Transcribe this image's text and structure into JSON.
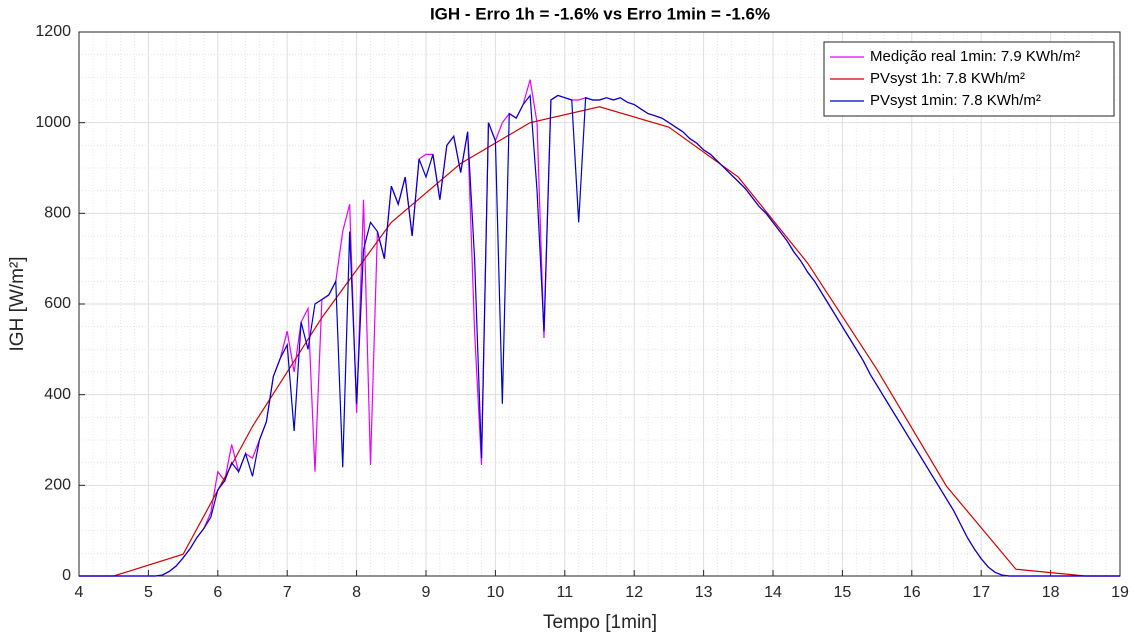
{
  "chart_data": {
    "type": "line",
    "title": "IGH - Erro 1h = -1.6% vs Erro 1min = -1.6%",
    "xlabel": "Tempo [1min]",
    "ylabel": "IGH [W/m²]",
    "xlim": [
      4,
      19
    ],
    "ylim": [
      0,
      1200
    ],
    "xticks": [
      4,
      5,
      6,
      7,
      8,
      9,
      10,
      11,
      12,
      13,
      14,
      15,
      16,
      17,
      18,
      19
    ],
    "yticks": [
      0,
      200,
      400,
      600,
      800,
      1000,
      1200
    ],
    "grid": true,
    "minor_grid": true,
    "legend": "northeast",
    "x": [
      4,
      4.1,
      4.2,
      4.3,
      4.4,
      4.5,
      4.6,
      4.7,
      4.8,
      4.9,
      5,
      5.1,
      5.2,
      5.3,
      5.4,
      5.5,
      5.6,
      5.7,
      5.8,
      5.9,
      6,
      6.1,
      6.2,
      6.3,
      6.4,
      6.5,
      6.6,
      6.7,
      6.8,
      6.9,
      7,
      7.1,
      7.2,
      7.3,
      7.4,
      7.5,
      7.6,
      7.7,
      7.8,
      7.9,
      8,
      8.1,
      8.2,
      8.3,
      8.4,
      8.5,
      8.6,
      8.7,
      8.8,
      8.9,
      9,
      9.1,
      9.2,
      9.3,
      9.4,
      9.5,
      9.6,
      9.7,
      9.8,
      9.9,
      10,
      10.1,
      10.2,
      10.3,
      10.4,
      10.5,
      10.6,
      10.7,
      10.8,
      10.9,
      11,
      11.1,
      11.2,
      11.3,
      11.4,
      11.5,
      11.6,
      11.7,
      11.8,
      11.9,
      12,
      12.1,
      12.2,
      12.3,
      12.4,
      12.5,
      12.6,
      12.7,
      12.8,
      12.9,
      13,
      13.1,
      13.2,
      13.3,
      13.4,
      13.5,
      13.6,
      13.7,
      13.8,
      13.9,
      14,
      14.1,
      14.2,
      14.3,
      14.4,
      14.5,
      14.6,
      14.7,
      14.8,
      14.9,
      15,
      15.1,
      15.2,
      15.3,
      15.4,
      15.5,
      15.6,
      15.7,
      15.8,
      15.9,
      16,
      16.1,
      16.2,
      16.3,
      16.4,
      16.5,
      16.6,
      16.7,
      16.8,
      16.9,
      17,
      17.1,
      17.2,
      17.3,
      17.4,
      17.5,
      17.6,
      17.7,
      17.8,
      17.9,
      18,
      18.1,
      18.2,
      18.3,
      18.4,
      18.5,
      18.6,
      18.7,
      18.8,
      18.9,
      19
    ],
    "series": [
      {
        "name": "Medição real 1min: 7.9 KWh/m²",
        "color": "#e600ff",
        "values": [
          0,
          0,
          0,
          0,
          0,
          0,
          0,
          0,
          0,
          0,
          0,
          0,
          2,
          10,
          22,
          40,
          60,
          85,
          105,
          140,
          230,
          210,
          290,
          230,
          270,
          260,
          300,
          340,
          440,
          480,
          540,
          450,
          560,
          590,
          230,
          610,
          620,
          650,
          760,
          820,
          360,
          830,
          245,
          760,
          700,
          860,
          820,
          880,
          750,
          920,
          930,
          930,
          830,
          950,
          970,
          890,
          980,
          540,
          245,
          1000,
          960,
          1000,
          1020,
          1010,
          1040,
          1095,
          1000,
          525,
          1050,
          1060,
          1055,
          1050,
          1050,
          1055,
          1050,
          1050,
          1055,
          1050,
          1055,
          1045,
          1040,
          1030,
          1020,
          1015,
          1010,
          1000,
          990,
          980,
          965,
          955,
          940,
          930,
          915,
          900,
          885,
          870,
          855,
          835,
          815,
          800,
          780,
          760,
          740,
          715,
          695,
          670,
          650,
          625,
          600,
          575,
          550,
          525,
          500,
          475,
          445,
          420,
          395,
          370,
          345,
          320,
          295,
          270,
          245,
          220,
          195,
          170,
          145,
          115,
          85,
          60,
          38,
          20,
          8,
          2,
          0,
          0,
          0,
          0,
          0,
          0,
          0,
          0,
          0,
          0,
          0,
          0,
          0,
          0,
          0,
          0,
          0
        ]
      },
      {
        "name": "PVsyst 1h: 7.8 KWh/m²",
        "color": "#d40000",
        "x": [
          4,
          4.5,
          5.5,
          6.5,
          7.5,
          8.5,
          9.5,
          10.5,
          11.5,
          12.5,
          13.5,
          14.5,
          15.5,
          16.5,
          17.5,
          18.5,
          19
        ],
        "values": [
          0,
          0,
          48,
          330,
          570,
          780,
          910,
          1000,
          1035,
          990,
          880,
          690,
          455,
          198,
          15,
          0,
          0
        ]
      },
      {
        "name": "PVsyst 1min: 7.8 KWh/m²",
        "color": "#0000cc",
        "values": [
          0,
          0,
          0,
          0,
          0,
          0,
          0,
          0,
          0,
          0,
          0,
          0,
          2,
          10,
          22,
          40,
          60,
          85,
          105,
          130,
          190,
          210,
          250,
          230,
          270,
          220,
          300,
          340,
          440,
          480,
          510,
          320,
          560,
          500,
          600,
          610,
          620,
          650,
          240,
          760,
          380,
          720,
          780,
          760,
          700,
          860,
          820,
          880,
          750,
          920,
          880,
          930,
          830,
          950,
          970,
          890,
          980,
          700,
          260,
          1000,
          960,
          380,
          1020,
          1010,
          1040,
          1060,
          850,
          540,
          1050,
          1060,
          1055,
          1050,
          780,
          1055,
          1050,
          1050,
          1055,
          1050,
          1055,
          1045,
          1040,
          1030,
          1020,
          1015,
          1010,
          1000,
          990,
          980,
          965,
          955,
          940,
          930,
          915,
          900,
          885,
          870,
          855,
          835,
          815,
          800,
          780,
          760,
          740,
          715,
          695,
          670,
          650,
          625,
          600,
          575,
          550,
          525,
          500,
          475,
          445,
          420,
          395,
          370,
          345,
          320,
          295,
          270,
          245,
          220,
          195,
          170,
          145,
          115,
          85,
          60,
          38,
          20,
          8,
          2,
          0,
          0,
          0,
          0,
          0,
          0,
          0,
          0,
          0,
          0,
          0,
          0,
          0,
          0,
          0,
          0,
          0
        ]
      }
    ]
  }
}
